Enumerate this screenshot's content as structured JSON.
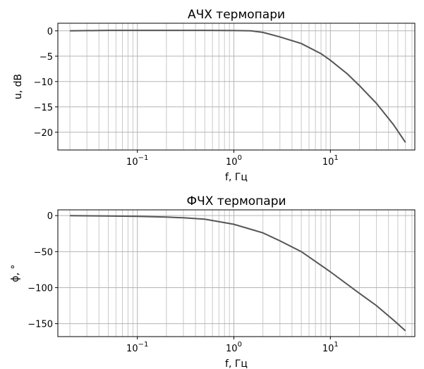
{
  "chart_data": [
    {
      "type": "line",
      "title": "АЧХ термопари",
      "xlabel": "f, Гц",
      "ylabel": "u, dB",
      "xscale": "log",
      "xlim": [
        0.015,
        75
      ],
      "ylim": [
        -23.5,
        1.5
      ],
      "xticks": [
        0.1,
        1,
        10
      ],
      "xtick_labels": [
        {
          "base": "10",
          "exp": "−1"
        },
        {
          "base": "10",
          "exp": "0"
        },
        {
          "base": "10",
          "exp": "1"
        }
      ],
      "yticks": [
        0,
        -5,
        -10,
        -15,
        -20
      ],
      "ytick_labels": [
        "0",
        "−5",
        "−10",
        "−15",
        "−20"
      ],
      "grid": true,
      "line_color": "#555555",
      "series": [
        {
          "x": [
            0.02,
            0.05,
            0.1,
            0.2,
            0.5,
            1,
            1.5,
            2,
            3,
            5,
            8,
            10,
            15,
            20,
            30,
            45,
            60
          ],
          "values": [
            0,
            0.1,
            0.1,
            0.1,
            0.1,
            0.05,
            0,
            -0.3,
            -1.2,
            -2.5,
            -4.5,
            -5.8,
            -8.5,
            -10.8,
            -14.3,
            -18.5,
            -22
          ]
        }
      ]
    },
    {
      "type": "line",
      "title": "ФЧХ термопари",
      "xlabel": "f, Гц",
      "ylabel": "ϕ, °",
      "xscale": "log",
      "xlim": [
        0.015,
        75
      ],
      "ylim": [
        -168,
        8
      ],
      "xticks": [
        0.1,
        1,
        10
      ],
      "xtick_labels": [
        {
          "base": "10",
          "exp": "−1"
        },
        {
          "base": "10",
          "exp": "0"
        },
        {
          "base": "10",
          "exp": "1"
        }
      ],
      "yticks": [
        0,
        -50,
        -100,
        -150
      ],
      "ytick_labels": [
        "0",
        "−50",
        "−100",
        "−150"
      ],
      "grid": true,
      "line_color": "#555555",
      "series": [
        {
          "x": [
            0.02,
            0.05,
            0.1,
            0.2,
            0.3,
            0.5,
            1,
            2,
            3,
            5,
            10,
            20,
            30,
            45,
            60
          ],
          "values": [
            0,
            -0.5,
            -1,
            -2,
            -3,
            -5,
            -12,
            -24,
            -35,
            -50,
            -78,
            -108,
            -125,
            -145,
            -160
          ]
        }
      ]
    }
  ]
}
